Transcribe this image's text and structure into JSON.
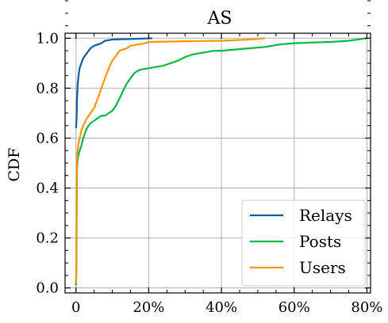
{
  "chart_data": {
    "type": "line",
    "title": "AS",
    "xlabel": "",
    "ylabel": "CDF",
    "xlim": [
      -3,
      81
    ],
    "ylim": [
      -0.02,
      1.02
    ],
    "grid": true,
    "legend_position": "bottom-right",
    "x_ticks": [
      {
        "value": 0,
        "label": "0"
      },
      {
        "value": 20,
        "label": "20%"
      },
      {
        "value": 40,
        "label": "40%"
      },
      {
        "value": 60,
        "label": "60%"
      },
      {
        "value": 80,
        "label": "80%"
      }
    ],
    "y_ticks": [
      {
        "value": 0.0,
        "label": "0.0"
      },
      {
        "value": 0.2,
        "label": "0.2"
      },
      {
        "value": 0.4,
        "label": "0.4"
      },
      {
        "value": 0.6,
        "label": "0.6"
      },
      {
        "value": 0.8,
        "label": "0.8"
      },
      {
        "value": 1.0,
        "label": "1.0"
      }
    ],
    "series": [
      {
        "name": "Relays",
        "color": "#0C5DA5",
        "points": [
          [
            0,
            0.64
          ],
          [
            0.1,
            0.66
          ],
          [
            0.2,
            0.7
          ],
          [
            0.3,
            0.76
          ],
          [
            0.5,
            0.82
          ],
          [
            0.8,
            0.86
          ],
          [
            1,
            0.88
          ],
          [
            1.5,
            0.9
          ],
          [
            2,
            0.92
          ],
          [
            3,
            0.94
          ],
          [
            4,
            0.96
          ],
          [
            5,
            0.97
          ],
          [
            6,
            0.975
          ],
          [
            7,
            0.98
          ],
          [
            8,
            0.99
          ],
          [
            10,
            0.995
          ],
          [
            15,
            0.997
          ],
          [
            21,
            1.0
          ]
        ]
      },
      {
        "name": "Posts",
        "color": "#00B945",
        "points": [
          [
            0,
            0.01
          ],
          [
            0.1,
            0.06
          ],
          [
            0.2,
            0.3
          ],
          [
            0.3,
            0.48
          ],
          [
            0.5,
            0.52
          ],
          [
            1,
            0.55
          ],
          [
            1.5,
            0.57
          ],
          [
            2,
            0.6
          ],
          [
            3,
            0.64
          ],
          [
            4,
            0.66
          ],
          [
            5,
            0.67
          ],
          [
            6,
            0.68
          ],
          [
            7,
            0.69
          ],
          [
            8,
            0.69
          ],
          [
            9,
            0.7
          ],
          [
            10,
            0.71
          ],
          [
            11,
            0.73
          ],
          [
            12,
            0.76
          ],
          [
            13,
            0.79
          ],
          [
            14,
            0.82
          ],
          [
            15,
            0.84
          ],
          [
            16,
            0.86
          ],
          [
            17,
            0.87
          ],
          [
            18,
            0.875
          ],
          [
            20,
            0.88
          ],
          [
            22,
            0.885
          ],
          [
            24,
            0.89
          ],
          [
            26,
            0.9
          ],
          [
            28,
            0.91
          ],
          [
            30,
            0.925
          ],
          [
            32,
            0.935
          ],
          [
            34,
            0.94
          ],
          [
            36,
            0.945
          ],
          [
            38,
            0.95
          ],
          [
            40,
            0.95
          ],
          [
            44,
            0.955
          ],
          [
            48,
            0.96
          ],
          [
            52,
            0.965
          ],
          [
            56,
            0.975
          ],
          [
            60,
            0.98
          ],
          [
            65,
            0.983
          ],
          [
            70,
            0.985
          ],
          [
            75,
            0.99
          ],
          [
            80,
            1.0
          ]
        ]
      },
      {
        "name": "Users",
        "color": "#FF9500",
        "points": [
          [
            0,
            0.02
          ],
          [
            0.1,
            0.15
          ],
          [
            0.2,
            0.42
          ],
          [
            0.3,
            0.52
          ],
          [
            0.5,
            0.56
          ],
          [
            1,
            0.6
          ],
          [
            1.5,
            0.63
          ],
          [
            2,
            0.65
          ],
          [
            3,
            0.68
          ],
          [
            4,
            0.7
          ],
          [
            5,
            0.72
          ],
          [
            6,
            0.76
          ],
          [
            7,
            0.8
          ],
          [
            8,
            0.84
          ],
          [
            9,
            0.88
          ],
          [
            10,
            0.91
          ],
          [
            11,
            0.93
          ],
          [
            12,
            0.95
          ],
          [
            14,
            0.96
          ],
          [
            15,
            0.97
          ],
          [
            17,
            0.975
          ],
          [
            19,
            0.98
          ],
          [
            20,
            0.985
          ],
          [
            30,
            0.988
          ],
          [
            40,
            0.99
          ],
          [
            48,
            0.995
          ],
          [
            52,
            1.0
          ]
        ]
      }
    ]
  }
}
